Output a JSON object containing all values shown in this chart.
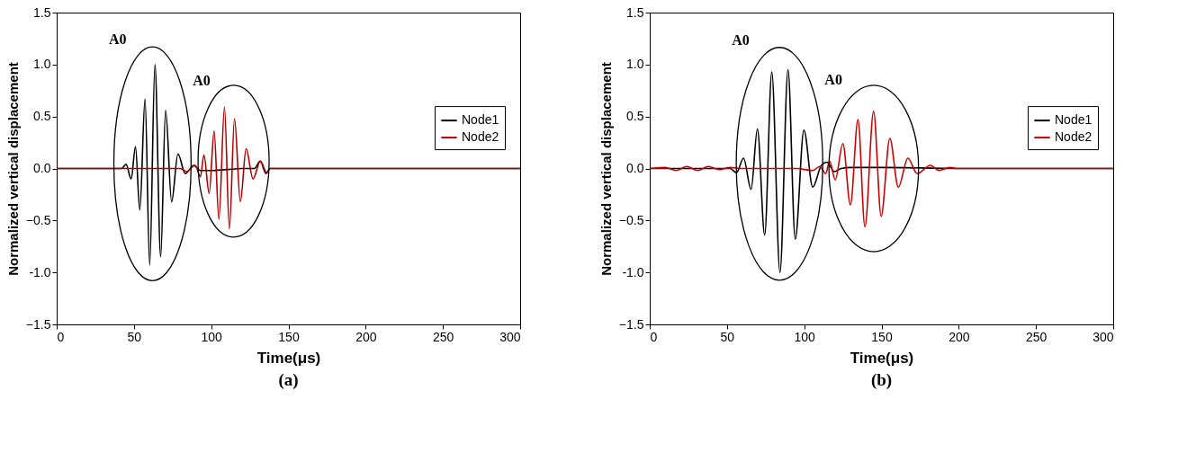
{
  "chart_data": [
    {
      "type": "line",
      "title": "(a)",
      "xlabel": "Time(μs)",
      "ylabel": "Normalized vertical displacement",
      "xlim": [
        0,
        300
      ],
      "ylim": [
        -1.5,
        1.5
      ],
      "xticks": [
        0,
        50,
        100,
        150,
        200,
        250,
        300
      ],
      "yticks": [
        -1.5,
        {
          "value": -1,
          "label": "-1.0"
        },
        -0.5,
        {
          "value": 0,
          "label": "0.0"
        },
        0.5,
        {
          "value": 1,
          "label": "1.0"
        },
        1.5
      ],
      "legend": "right",
      "grid": false,
      "annotations": [
        "A0",
        "A0"
      ],
      "series": [
        {
          "name": "Node1",
          "color": "#000000",
          "x": [
            0,
            40,
            42,
            44.9,
            48.2,
            51,
            53.8,
            57.2,
            60.2,
            63.6,
            67.3,
            70.5,
            74.4,
            78.5,
            83.2,
            88.8,
            93,
            100,
            110,
            120,
            128,
            131.8,
            135.5,
            138,
            300
          ],
          "values": [
            0,
            0,
            0,
            0.04,
            -0.1,
            0.21,
            -0.4,
            0.67,
            -0.93,
            1.0,
            -0.85,
            0.56,
            -0.32,
            0.14,
            -0.05,
            0.03,
            -0.02,
            -0.02,
            -0.01,
            0,
            0,
            0.07,
            -0.05,
            0,
            0
          ]
        },
        {
          "name": "Node2",
          "color": "#b00000",
          "x": [
            0,
            80,
            84,
            89.7,
            93,
            95.3,
            98.7,
            101.9,
            105,
            108.6,
            111.8,
            115.1,
            118.9,
            122.6,
            127.1,
            131.8,
            136,
            138,
            300
          ],
          "values": [
            0,
            0,
            -0.03,
            0.03,
            -0.08,
            0.13,
            -0.24,
            0.36,
            -0.49,
            0.59,
            -0.58,
            0.48,
            -0.32,
            0.19,
            -0.1,
            0.07,
            -0.04,
            0,
            0
          ]
        }
      ]
    },
    {
      "type": "line",
      "title": "(b)",
      "xlabel": "Time(μs)",
      "ylabel": "Normalized vertical displacement",
      "xlim": [
        0,
        300
      ],
      "ylim": [
        -1.5,
        1.5
      ],
      "xticks": [
        0,
        50,
        100,
        150,
        200,
        250,
        300
      ],
      "yticks": [
        -1.5,
        {
          "value": -1,
          "label": "-1.0"
        },
        -0.5,
        {
          "value": 0,
          "label": "0.0"
        },
        0.5,
        {
          "value": 1,
          "label": "1.0"
        },
        1.5
      ],
      "legend": "right",
      "grid": false,
      "annotations": [
        "A0",
        "A0"
      ],
      "series": [
        {
          "name": "Node1",
          "color": "#000000",
          "x": [
            0,
            52,
            56.2,
            60.7,
            65.6,
            69.7,
            74.4,
            79,
            84.3,
            89.5,
            94.2,
            99.8,
            105.5,
            111.1,
            114.8,
            119.5,
            124,
            130,
            150,
            200,
            300
          ],
          "values": [
            0,
            0,
            -0.04,
            0.1,
            -0.2,
            0.38,
            -0.64,
            0.93,
            -1.0,
            0.95,
            -0.68,
            0.37,
            -0.18,
            0.03,
            0.06,
            -0.03,
            0,
            0.01,
            0.01,
            0,
            0
          ]
        },
        {
          "name": "Node2",
          "color": "#cc0000",
          "x": [
            0,
            10,
            17,
            24,
            31,
            38,
            45,
            52,
            60,
            95,
            105.5,
            110,
            113.9,
            116.4,
            120.1,
            125,
            129.9,
            134.8,
            139.3,
            144.9,
            149.8,
            155.4,
            160.9,
            167.1,
            173.1,
            181.6,
            187.3,
            193.9,
            200,
            300
          ],
          "values": [
            0,
            0.01,
            -0.02,
            0.02,
            -0.02,
            0.02,
            -0.01,
            0.01,
            0,
            0,
            -0.02,
            0.02,
            -0.05,
            0.07,
            -0.11,
            0.24,
            -0.35,
            0.47,
            -0.56,
            0.55,
            -0.46,
            0.29,
            -0.18,
            0.1,
            -0.05,
            0.03,
            -0.02,
            0.01,
            0,
            0
          ]
        }
      ]
    }
  ]
}
